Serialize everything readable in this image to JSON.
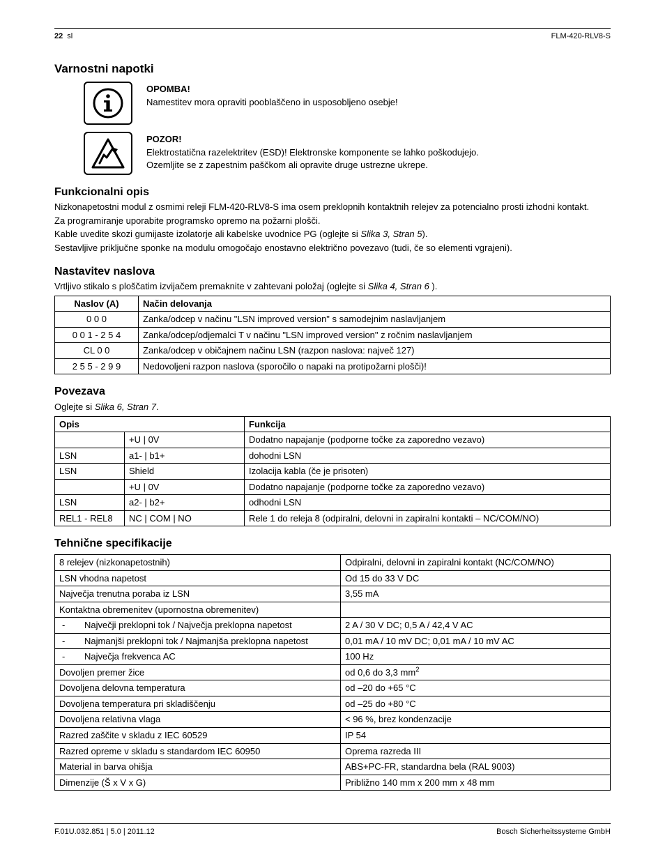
{
  "header": {
    "page_num": "22",
    "lang": "sl",
    "product": "FLM-420-RLV8-S"
  },
  "sections": {
    "safety": {
      "title": "Varnostni napotki",
      "note": {
        "heading": "OPOMBA!",
        "text": "Namestitev mora opraviti pooblaščeno in usposobljeno osebje!"
      },
      "caution": {
        "heading": "POZOR!",
        "line1": "Elektrostatična razelektritev (ESD)! Elektronske komponente se lahko poškodujejo.",
        "line2": "Ozemljite se z zapestnim paščkom ali opravite druge ustrezne ukrepe."
      }
    },
    "functional": {
      "title": "Funkcionalni opis",
      "p1": "Nizkonapetostni modul z osmimi releji FLM-420-RLV8-S ima osem preklopnih kontaktnih relejev za potencialno prosti izhodni kontakt.",
      "p2": "Za programiranje uporabite programsko opremo na požarni plošči.",
      "p3a": "Kable uvedite skozi gumijaste izolatorje ali kabelske uvodnice PG (oglejte si ",
      "p3ref": "Slika 3, Stran 5",
      "p3b": ").",
      "p4": "Sestavljive priključne sponke na modulu omogočajo enostavno električno povezavo (tudi, če so elementi vgrajeni)."
    },
    "address": {
      "title": "Nastavitev naslova",
      "intro_a": "Vrtljivo stikalo s ploščatim izvijačem premaknite v zahtevani položaj (oglejte si ",
      "intro_ref": "Slika 4, Stran 6",
      "intro_b": " ).",
      "table": {
        "head": [
          "Naslov (A)",
          "Način delovanja"
        ],
        "rows": [
          [
            "0 0 0",
            "Zanka/odcep v načinu \"LSN improved version\" s samodejnim naslavljanjem"
          ],
          [
            "0 0 1 - 2 5 4",
            "Zanka/odcep/odjemalci T v načinu \"LSN improved version\" z ročnim naslavljanjem"
          ],
          [
            "CL 0 0",
            "Zanka/odcep v običajnem načinu LSN (razpon naslova: največ 127)"
          ],
          [
            "2 5 5 - 2 9 9",
            "Nedovoljeni razpon naslova (sporočilo o napaki na protipožarni plošči)!"
          ]
        ]
      }
    },
    "connection": {
      "title": "Povezava",
      "intro_a": "Oglejte si ",
      "intro_ref": "Slika 6, Stran 7",
      "intro_b": ".",
      "table": {
        "head": [
          "Opis",
          "",
          "Funkcija"
        ],
        "rows": [
          [
            "",
            "+U | 0V",
            "Dodatno napajanje (podporne točke za zaporedno vezavo)"
          ],
          [
            "LSN",
            "a1- | b1+",
            "dohodni LSN"
          ],
          [
            "LSN",
            "Shield",
            "Izolacija kabla (če je prisoten)"
          ],
          [
            "",
            "+U | 0V",
            "Dodatno napajanje (podporne točke za zaporedno vezavo)"
          ],
          [
            "LSN",
            "a2- | b2+",
            "odhodni LSN"
          ],
          [
            "REL1 - REL8",
            "NC | COM | NO",
            "Rele 1 do releja 8 (odpiralni, delovni in zapiralni kontakti – NC/COM/NO)"
          ]
        ]
      }
    },
    "specs": {
      "title": "Tehnične specifikacije",
      "rows": [
        {
          "k": "8 relejev (nizkonapetostnih)",
          "v": "Odpiralni, delovni in zapiralni kontakt (NC/COM/NO)"
        },
        {
          "k": "LSN vhodna napetost",
          "v": "Od 15 do 33 V DC"
        },
        {
          "k": "Največja trenutna poraba iz LSN",
          "v": "3,55 mA"
        },
        {
          "k": "Kontaktna obremenitev (upornostna obremenitev)",
          "v": ""
        },
        {
          "sub": true,
          "k": "Največji preklopni tok / Največja preklopna napetost",
          "v": "2 A / 30 V DC; 0,5 A / 42,4 V AC"
        },
        {
          "sub": true,
          "k": "Najmanjši preklopni tok / Najmanjša preklopna napetost",
          "v": "0,01 mA / 10 mV DC; 0,01 mA / 10 mV AC"
        },
        {
          "sub": true,
          "k": "Največja frekvenca AC",
          "v": "100 Hz"
        },
        {
          "k": "Dovoljen premer žice",
          "v": "od 0,6 do 3,3 mm",
          "sup": "2"
        },
        {
          "k": "Dovoljena delovna temperatura",
          "v": "od –20 do +65 °C"
        },
        {
          "k": "Dovoljena temperatura pri skladiščenju",
          "v": "od –25 do +80 °C"
        },
        {
          "k": "Dovoljena relativna vlaga",
          "v": "< 96 %, brez kondenzacije"
        },
        {
          "k": "Razred zaščite v skladu z IEC 60529",
          "v": "IP 54"
        },
        {
          "k": "Razred opreme v skladu s standardom IEC 60950",
          "v": "Oprema razreda III"
        },
        {
          "k": "Material in barva ohišja",
          "v": "ABS+PC-FR, standardna bela (RAL 9003)"
        },
        {
          "k": "Dimenzije (Š x V x G)",
          "v": "Približno 140 mm x 200 mm x 48 mm"
        }
      ]
    }
  },
  "footer": {
    "left": "F.01U.032.851 | 5.0 | 2011.12",
    "right": "Bosch Sicherheitssysteme GmbH"
  }
}
